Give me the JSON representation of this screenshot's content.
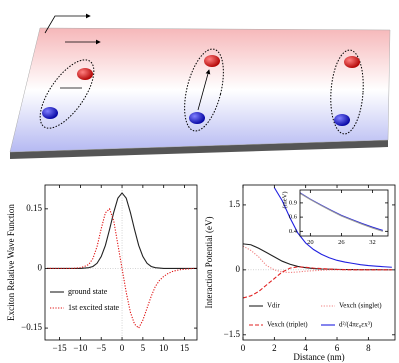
{
  "chart_data": [
    {
      "type": "line",
      "ylabel": "Exciton Relative Wave Function",
      "x": [
        -18,
        -17,
        -16,
        -15,
        -14,
        -13,
        -12,
        -11,
        -10,
        -9,
        -8,
        -7,
        -6,
        -5,
        -4,
        -3,
        -2,
        -1,
        0,
        1,
        2,
        3,
        4,
        5,
        6,
        7,
        8,
        9,
        10,
        11,
        12,
        13,
        14,
        15,
        16,
        17,
        18
      ],
      "series": [
        {
          "name": "ground state",
          "color": "#222222",
          "style": "solid",
          "values": [
            0,
            0,
            0,
            0,
            0,
            0,
            0,
            0,
            0,
            0.001,
            0.002,
            0.005,
            0.013,
            0.03,
            0.058,
            0.098,
            0.141,
            0.177,
            0.19,
            0.177,
            0.141,
            0.098,
            0.058,
            0.03,
            0.013,
            0.005,
            0.002,
            0.001,
            0,
            0,
            0,
            0,
            0,
            0,
            0,
            0,
            0
          ]
        },
        {
          "name": "1st excited state",
          "color": "#e01010",
          "style": "dotted",
          "values": [
            0,
            0,
            0,
            0,
            0,
            0,
            0,
            0.001,
            0.002,
            0.005,
            0.01,
            0.025,
            0.055,
            0.1,
            0.14,
            0.15,
            0.12,
            0.06,
            0,
            -0.06,
            -0.11,
            -0.14,
            -0.15,
            -0.13,
            -0.1,
            -0.07,
            -0.045,
            -0.03,
            -0.02,
            -0.013,
            -0.008,
            -0.005,
            -0.003,
            -0.002,
            -0.001,
            0,
            0
          ]
        }
      ],
      "xlim": [
        -18.5,
        18
      ],
      "xticks": [
        {
          "value": -15,
          "label": "−15"
        },
        {
          "value": -10,
          "label": "−10"
        },
        {
          "value": -5,
          "label": "−5"
        },
        0,
        5,
        10,
        15
      ],
      "ylim": [
        -0.18,
        0.21
      ],
      "yticks": [
        {
          "value": -0.15,
          "label": "−0.15"
        },
        0,
        0.15
      ],
      "legend": "lower left"
    },
    {
      "type": "line",
      "xlabel": "Distance (nm)",
      "ylabel": "Interaction Potential (eV)",
      "x": [
        0,
        0.5,
        1,
        1.5,
        2,
        2.5,
        3,
        3.5,
        4,
        4.5,
        5,
        5.5,
        6,
        6.5,
        7,
        7.5,
        8,
        8.5,
        9,
        9.5
      ],
      "series": [
        {
          "name": "Vdir",
          "color": "#222222",
          "style": "solid",
          "values": [
            0.6,
            0.58,
            0.5,
            0.4,
            0.3,
            0.2,
            0.13,
            0.08,
            0.05,
            0.03,
            0.02,
            0.015,
            0.01,
            0.008,
            0.006,
            0.005,
            0.004,
            0.003,
            0.002,
            0.002
          ]
        },
        {
          "name": "Vexch (singlet)",
          "color": "#f08080",
          "style": "dotted",
          "values": [
            0.55,
            0.45,
            0.3,
            0.1,
            0,
            -0.05,
            -0.06,
            -0.05,
            -0.03,
            -0.02,
            -0.01,
            0,
            0,
            0,
            0,
            0,
            0,
            0,
            0,
            0
          ]
        },
        {
          "name": "Vexch (triplet)",
          "color": "#e02020",
          "style": "dashed",
          "values": [
            -0.65,
            -0.6,
            -0.5,
            -0.35,
            -0.2,
            -0.05,
            0.04,
            0.07,
            0.06,
            0.04,
            0.03,
            0.02,
            0.01,
            0.005,
            0,
            0,
            0,
            0,
            0,
            0
          ]
        },
        {
          "name": "d²/(4πε₀εx³)",
          "color": "#2020e0",
          "style": "solid",
          "values": [
            null,
            null,
            null,
            null,
            1.9,
            1.6,
            1.2,
            0.85,
            0.62,
            0.47,
            0.36,
            0.28,
            0.22,
            0.18,
            0.15,
            0.12,
            0.1,
            0.085,
            0.072,
            0.06
          ]
        }
      ],
      "xlim": [
        0,
        9.7
      ],
      "xticks": [
        0,
        2,
        4,
        6,
        8
      ],
      "ylim": [
        -1.62,
        1.96
      ],
      "yticks": [
        {
          "value": -1.5,
          "label": "−1.5"
        },
        0,
        1.5
      ],
      "legend": "lower center"
    },
    {
      "type": "line",
      "ylabel": "(meV)",
      "x": [
        18,
        20,
        22,
        24,
        26,
        28,
        30,
        32,
        34
      ],
      "series": [
        {
          "color": "#2020e0",
          "style": "solid",
          "values": [
            1.2,
            1.0,
            0.85,
            0.73,
            0.63,
            0.56,
            0.5,
            0.45,
            0.41
          ]
        },
        {
          "color": "#999999",
          "style": "solid",
          "values": [
            1.18,
            0.99,
            0.84,
            0.72,
            0.62,
            0.55,
            0.49,
            0.44,
            0.4
          ]
        }
      ],
      "xlim": [
        18,
        35
      ],
      "xticks": [
        20,
        26,
        32
      ],
      "ylim": [
        0.35,
        1.3
      ],
      "yticks": [
        0.4,
        0.6,
        0.9
      ],
      "log_y": true
    }
  ]
}
